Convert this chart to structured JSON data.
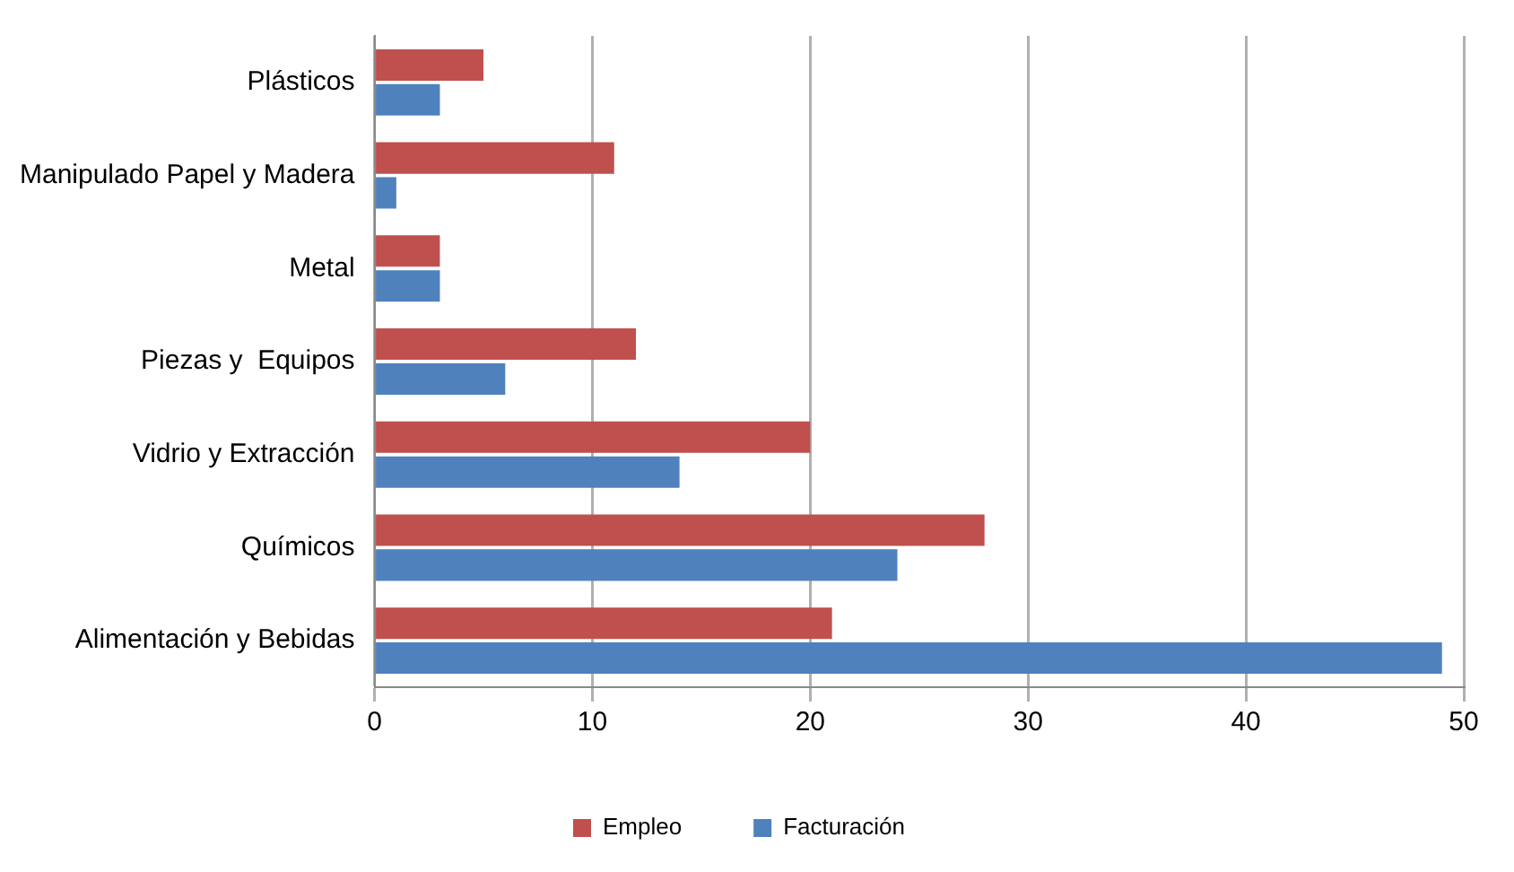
{
  "chart_data": {
    "type": "bar",
    "orientation": "horizontal",
    "categories": [
      "Plásticos",
      "Manipulado Papel y Madera",
      "Metal",
      "Piezas y  Equipos",
      "Vidrio y Extracción",
      "Químicos",
      "Alimentación y Bebidas"
    ],
    "series": [
      {
        "name": "Empleo",
        "color": "#c0504d",
        "values": [
          5,
          11,
          3,
          12,
          20,
          28,
          21
        ]
      },
      {
        "name": "Facturación",
        "color": "#4f81bd",
        "values": [
          3,
          1,
          3,
          6,
          14,
          24,
          49
        ]
      }
    ],
    "xlim": [
      0,
      50
    ],
    "xticks": [
      0,
      10,
      20,
      30,
      40,
      50
    ],
    "grid": "x",
    "legend": "bottom"
  }
}
